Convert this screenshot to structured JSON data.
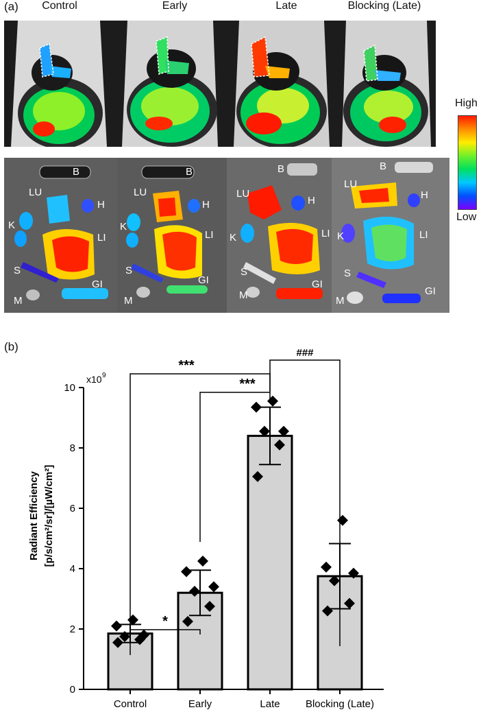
{
  "panel_a": {
    "label": "(a)",
    "columns": [
      "Control",
      "Early",
      "Late",
      "Blocking (Late)"
    ],
    "colorbar": {
      "high": "High",
      "low": "Low"
    },
    "organ_labels": {
      "B": "B",
      "LU": "LU",
      "H": "H",
      "K": "K",
      "LI": "LI",
      "S": "S",
      "M": "M",
      "GI": "GI"
    }
  },
  "panel_b": {
    "label": "(b)"
  },
  "chart_data": {
    "type": "bar",
    "categories": [
      "Control",
      "Early",
      "Late",
      "Blocking (Late)"
    ],
    "values": [
      1.85,
      3.2,
      8.4,
      3.75
    ],
    "error": [
      0.3,
      0.75,
      0.95,
      1.08
    ],
    "points": [
      [
        1.55,
        1.65,
        1.75,
        1.8,
        2.1,
        2.3
      ],
      [
        2.25,
        2.75,
        3.25,
        3.4,
        3.9,
        4.25
      ],
      [
        7.05,
        8.1,
        8.55,
        8.55,
        9.35,
        9.55
      ],
      [
        2.6,
        2.85,
        3.6,
        3.85,
        4.05,
        5.6
      ]
    ],
    "ylabel": "Radiant Efficiency [p/s/cm²/sr]/[µW/cm²]",
    "ylabel_line1": "Radiant Efficiency",
    "ylabel_line2": "[p/s/cm²/sr]/[µW/cm²]",
    "multiplier": "x10",
    "multiplier_exp": "9",
    "ylim": [
      0,
      10
    ],
    "yticks": [
      0,
      2,
      4,
      6,
      8,
      10
    ],
    "significance": [
      {
        "from": 0,
        "to": 1,
        "label": "*"
      },
      {
        "from": 1,
        "to": 2,
        "label": "***"
      },
      {
        "from": 0,
        "to": 2,
        "label": "***"
      },
      {
        "from": 2,
        "to": 3,
        "label": "###"
      }
    ],
    "colors": {
      "bar": "#d3d3d3",
      "edge": "#000000",
      "points": "#000000"
    }
  }
}
